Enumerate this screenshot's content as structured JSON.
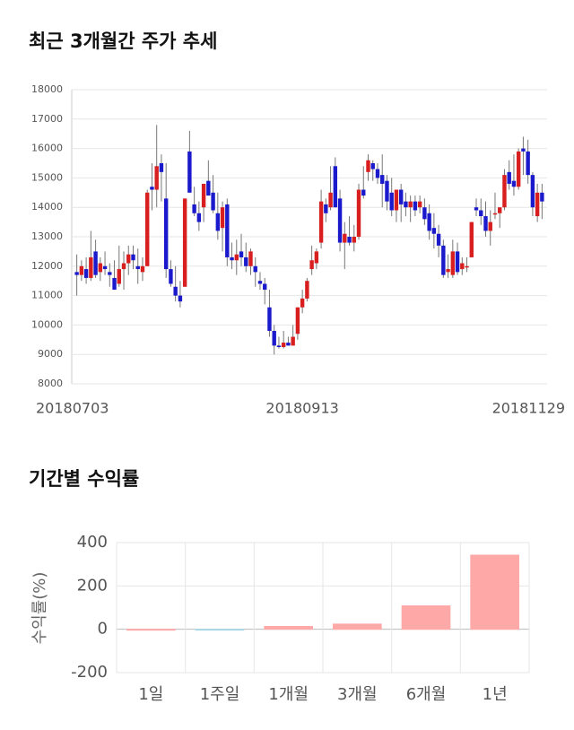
{
  "chart_data": [
    {
      "type": "candlestick",
      "title": "최근 3개월간 주가 추세",
      "categories": [
        "20180703",
        null,
        null,
        null,
        null,
        null,
        null,
        null,
        null,
        null,
        null,
        null,
        null,
        null,
        null,
        null,
        null,
        null,
        null,
        null,
        null,
        null,
        null,
        null,
        null,
        null,
        null,
        null,
        null,
        null,
        null,
        null,
        null,
        null,
        null,
        null,
        null,
        null,
        null,
        null,
        null,
        null,
        null,
        null,
        null,
        null,
        null,
        null,
        "20180913",
        null,
        null,
        null,
        null,
        null,
        null,
        null,
        null,
        null,
        null,
        null,
        null,
        null,
        null,
        null,
        null,
        null,
        null,
        null,
        null,
        null,
        null,
        null,
        null,
        null,
        null,
        null,
        null,
        null,
        null,
        null,
        null,
        null,
        null,
        null,
        null,
        null,
        null,
        null,
        null,
        null,
        null,
        null,
        null,
        null,
        null,
        null,
        null,
        null,
        null,
        "20181129"
      ],
      "candles": [
        [
          11800,
          12400,
          11000,
          11700
        ],
        [
          11700,
          12200,
          11500,
          12000
        ],
        [
          11900,
          12300,
          11400,
          11600
        ],
        [
          11600,
          13200,
          11500,
          12300
        ],
        [
          12500,
          12900,
          11600,
          11700
        ],
        [
          11800,
          12300,
          11500,
          12100
        ],
        [
          12000,
          12500,
          11700,
          11900
        ],
        [
          11800,
          12100,
          11300,
          11700
        ],
        [
          11600,
          12200,
          11200,
          11200
        ],
        [
          11400,
          12700,
          11300,
          11900
        ],
        [
          11900,
          12500,
          11200,
          12100
        ],
        [
          12100,
          12700,
          11700,
          12400
        ],
        [
          12400,
          12700,
          11900,
          12200
        ],
        [
          12000,
          12600,
          11400,
          11900
        ],
        [
          11800,
          12300,
          11500,
          12000
        ],
        [
          12000,
          14600,
          12000,
          14500
        ],
        [
          14700,
          15500,
          13900,
          14600
        ],
        [
          14600,
          16800,
          14000,
          15400
        ],
        [
          15500,
          15800,
          14200,
          15200
        ],
        [
          14300,
          15500,
          11600,
          11900
        ],
        [
          11900,
          12200,
          11300,
          11400
        ],
        [
          11300,
          12000,
          10800,
          11000
        ],
        [
          11000,
          11500,
          10600,
          10800
        ],
        [
          11300,
          14300,
          11300,
          14300
        ],
        [
          15900,
          16600,
          14500,
          14500
        ],
        [
          14100,
          14700,
          13700,
          13800
        ],
        [
          13800,
          14200,
          13200,
          13500
        ],
        [
          14000,
          14800,
          13500,
          14800
        ],
        [
          14900,
          15600,
          14500,
          14400
        ],
        [
          14500,
          15100,
          13800,
          13900
        ],
        [
          13800,
          14500,
          12900,
          13200
        ],
        [
          13300,
          14200,
          12500,
          14000
        ],
        [
          14100,
          14300,
          12000,
          12300
        ],
        [
          12300,
          12800,
          11900,
          12200
        ],
        [
          12200,
          12900,
          11700,
          12400
        ],
        [
          12500,
          13100,
          12000,
          12300
        ],
        [
          12300,
          12800,
          11800,
          12000
        ],
        [
          12000,
          12600,
          11700,
          12500
        ],
        [
          12000,
          12300,
          11300,
          11800
        ],
        [
          11500,
          11800,
          11200,
          11400
        ],
        [
          11400,
          11600,
          10700,
          11200
        ],
        [
          10600,
          11200,
          9600,
          9800
        ],
        [
          9800,
          10000,
          9000,
          9300
        ],
        [
          9300,
          9600,
          9200,
          9250
        ],
        [
          9250,
          9800,
          9200,
          9400
        ],
        [
          9400,
          9600,
          9300,
          9300
        ],
        [
          9300,
          10000,
          9300,
          9600
        ],
        [
          9700,
          10600,
          9500,
          10600
        ],
        [
          10600,
          11200,
          10400,
          10900
        ],
        [
          10900,
          11600,
          10800,
          11500
        ],
        [
          11900,
          12700,
          11700,
          12200
        ],
        [
          12100,
          12600,
          11900,
          12500
        ],
        [
          12800,
          14600,
          12600,
          14200
        ],
        [
          14100,
          14300,
          13500,
          13800
        ],
        [
          14000,
          15400,
          13900,
          14500
        ],
        [
          15400,
          15700,
          14000,
          14000
        ],
        [
          14300,
          14600,
          12500,
          12800
        ],
        [
          12800,
          13500,
          11900,
          13100
        ],
        [
          13000,
          13700,
          12700,
          12800
        ],
        [
          12800,
          13400,
          12500,
          13000
        ],
        [
          13000,
          14800,
          12900,
          14600
        ],
        [
          14600,
          15400,
          14300,
          14400
        ],
        [
          15200,
          15800,
          14900,
          15600
        ],
        [
          15500,
          15600,
          14900,
          15300
        ],
        [
          15300,
          15500,
          14800,
          15000
        ],
        [
          15100,
          15800,
          14000,
          14800
        ],
        [
          14900,
          15100,
          13900,
          14200
        ],
        [
          14500,
          15000,
          13700,
          13900
        ],
        [
          13900,
          14600,
          13500,
          14600
        ],
        [
          14600,
          14800,
          13500,
          14100
        ],
        [
          14200,
          14500,
          13700,
          14000
        ],
        [
          14000,
          14400,
          13500,
          14200
        ],
        [
          14200,
          14400,
          13700,
          13900
        ],
        [
          14000,
          14400,
          13800,
          14200
        ],
        [
          14000,
          14300,
          13400,
          13600
        ],
        [
          13800,
          14100,
          12900,
          13200
        ],
        [
          13300,
          13800,
          12600,
          13100
        ],
        [
          13100,
          13400,
          12300,
          12700
        ],
        [
          12700,
          12900,
          11600,
          11700
        ],
        [
          11800,
          12400,
          11600,
          11900
        ],
        [
          11700,
          12900,
          11600,
          12500
        ],
        [
          12500,
          12800,
          11700,
          11800
        ],
        [
          11900,
          12300,
          11700,
          12100
        ],
        [
          12000,
          12300,
          11800,
          12000
        ],
        [
          12300,
          13500,
          12300,
          13500
        ],
        [
          14000,
          14300,
          13700,
          13900
        ],
        [
          13900,
          14300,
          13400,
          13700
        ],
        [
          13700,
          14200,
          13000,
          13200
        ],
        [
          13200,
          13900,
          12700,
          13500
        ],
        [
          13800,
          14500,
          13600,
          13800
        ],
        [
          13800,
          14000,
          13300,
          14000
        ],
        [
          14000,
          15300,
          13900,
          15100
        ],
        [
          15200,
          15600,
          14600,
          14800
        ],
        [
          14900,
          15800,
          14400,
          14700
        ],
        [
          14700,
          16000,
          14600,
          15900
        ],
        [
          16000,
          16400,
          15100,
          15900
        ],
        [
          15900,
          16300,
          14800,
          15100
        ],
        [
          15100,
          15200,
          13700,
          14000
        ],
        [
          13700,
          14800,
          13500,
          14500
        ],
        [
          14500,
          14800,
          13600,
          14200
        ]
      ],
      "up_color": "#d81e1e",
      "down_color": "#1a1acc",
      "ylim": [
        8000,
        18000
      ],
      "yticks": [
        8000,
        9000,
        10000,
        11000,
        12000,
        13000,
        14000,
        15000,
        16000,
        17000,
        18000
      ],
      "grid": true
    },
    {
      "type": "bar",
      "title": "기간별 수익률",
      "ylabel": "수익률(%)",
      "categories": [
        "1일",
        "1주일",
        "1개월",
        "3개월",
        "6개월",
        "1년"
      ],
      "values": [
        0,
        -2,
        13,
        24,
        108,
        342
      ],
      "positive_color": "#ffa8a8",
      "negative_color": "#a8d8e8",
      "ylim": [
        -200,
        400
      ],
      "yticks": [
        -200,
        0,
        200,
        400
      ],
      "grid": true
    }
  ]
}
